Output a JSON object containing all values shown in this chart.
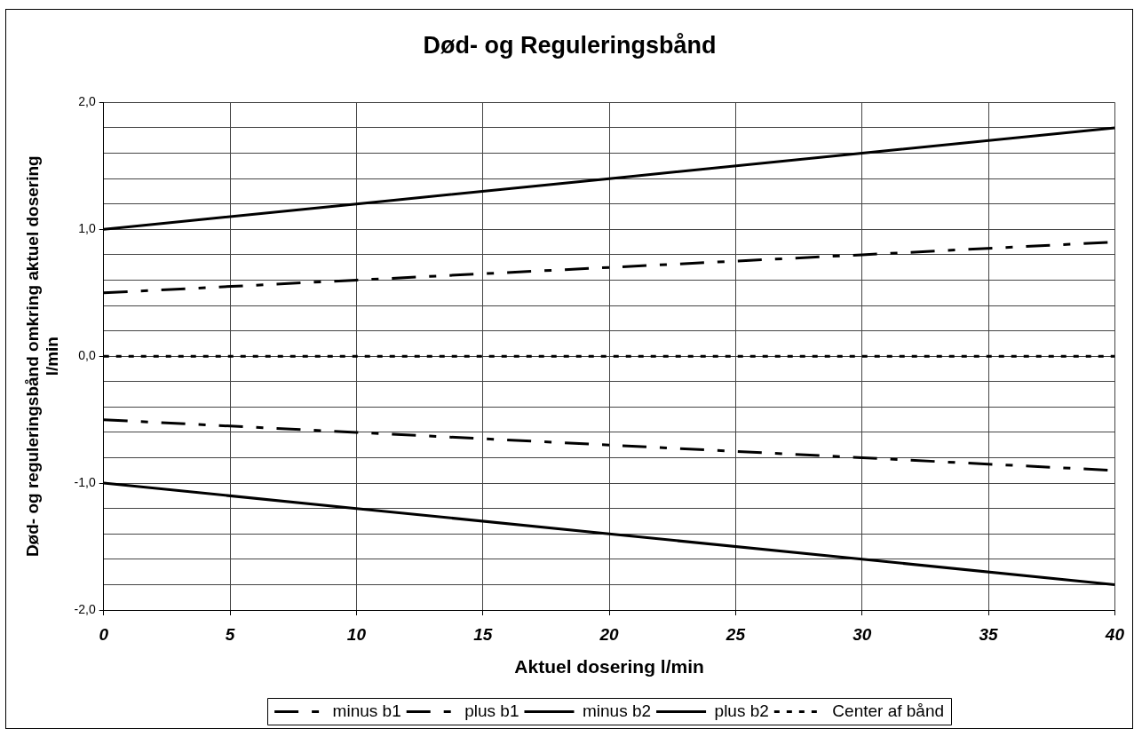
{
  "chart_data": {
    "type": "line",
    "title": "Død- og Reguleringsbånd",
    "xlabel": "Aktuel dosering l/min",
    "ylabel": "Død- og reguleringsbånd omkring aktuel dosering l/min",
    "x": [
      0,
      10,
      20,
      30,
      40
    ],
    "xlim": [
      0,
      40
    ],
    "xticks": [
      0,
      5,
      10,
      15,
      20,
      25,
      30,
      35,
      40
    ],
    "ylim": [
      -2,
      2
    ],
    "yticks": [
      {
        "value": -2,
        "label": "-2,0"
      },
      {
        "value": -1.8,
        "label": null
      },
      {
        "value": -1.6,
        "label": null
      },
      {
        "value": -1.4,
        "label": null
      },
      {
        "value": -1.2,
        "label": null
      },
      {
        "value": -1,
        "label": "-1,0"
      },
      {
        "value": -0.8,
        "label": null
      },
      {
        "value": -0.6,
        "label": null
      },
      {
        "value": -0.4,
        "label": null
      },
      {
        "value": -0.2,
        "label": null
      },
      {
        "value": 0,
        "label": "0,0"
      },
      {
        "value": 0.2,
        "label": null
      },
      {
        "value": 0.4,
        "label": null
      },
      {
        "value": 0.6,
        "label": null
      },
      {
        "value": 0.8,
        "label": null
      },
      {
        "value": 1,
        "label": "1,0"
      },
      {
        "value": 1.2,
        "label": null
      },
      {
        "value": 1.4,
        "label": null
      },
      {
        "value": 1.6,
        "label": null
      },
      {
        "value": 1.8,
        "label": null
      },
      {
        "value": 2,
        "label": "2,0"
      }
    ],
    "grid": true,
    "legend": "bottom",
    "marker": "none",
    "series": [
      {
        "name": "minus b1",
        "color": "#000000",
        "line_style": "dashed",
        "values": [
          -0.5,
          -0.6,
          -0.7,
          -0.8,
          -0.9
        ]
      },
      {
        "name": "plus b1",
        "color": "#000000",
        "line_style": "dashed",
        "values": [
          0.5,
          0.6,
          0.7,
          0.8,
          0.9
        ]
      },
      {
        "name": "minus b2",
        "color": "#000000",
        "line_style": "solid",
        "values": [
          -1,
          -1.2,
          -1.4,
          -1.6,
          -1.8
        ]
      },
      {
        "name": "plus b2",
        "color": "#000000",
        "line_style": "solid",
        "values": [
          1,
          1.2,
          1.4,
          1.6,
          1.8
        ]
      },
      {
        "name": "Center af bånd",
        "color": "#000000",
        "line_style": "dotted",
        "values": [
          0,
          0,
          0,
          0,
          0
        ]
      }
    ]
  }
}
